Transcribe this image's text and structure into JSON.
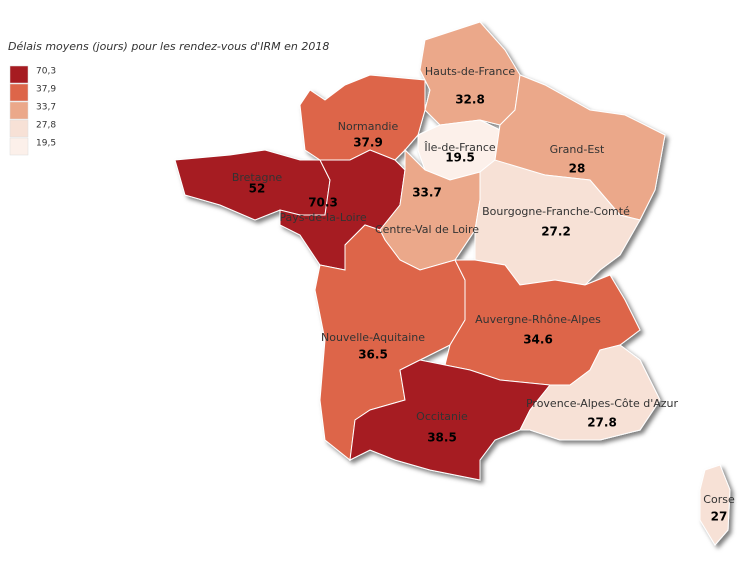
{
  "title": "Délais moyens (jours) pour les rendez-vous d'IRM en 2018",
  "legend": [
    {
      "value": 70.3,
      "label": "70,3",
      "color": "#a61b21"
    },
    {
      "value": 37.9,
      "label": "37,9",
      "color": "#dd6549"
    },
    {
      "value": 33.7,
      "label": "33,7",
      "color": "#eba88a"
    },
    {
      "value": 27.8,
      "label": "27,8",
      "color": "#f7e1d6"
    },
    {
      "value": 19.5,
      "label": "19,5",
      "color": "#fcf0ea"
    }
  ],
  "regions": [
    {
      "name": "Hauts-de-France",
      "value": 32.8
    },
    {
      "name": "Normandie",
      "value": 37.9
    },
    {
      "name": "Île-de-France",
      "value": 19.5
    },
    {
      "name": "Grand-Est",
      "value": 28
    },
    {
      "name": "Bretagne",
      "value": 52
    },
    {
      "name": "Pays-de-la-Loire",
      "value": 70.3
    },
    {
      "name": "Centre-Val de Loire",
      "value": 33.7
    },
    {
      "name": "Bourgogne-Franche-Comté",
      "value": 27.2
    },
    {
      "name": "Nouvelle-Aquitaine",
      "value": 36.5
    },
    {
      "name": "Auvergne-Rhône-Alpes",
      "value": 34.6
    },
    {
      "name": "Occitanie",
      "value": 38.5
    },
    {
      "name": "Provence-Alpes-Côte d'Azur",
      "value": 27.8
    },
    {
      "name": "Corse",
      "value": 27
    }
  ]
}
